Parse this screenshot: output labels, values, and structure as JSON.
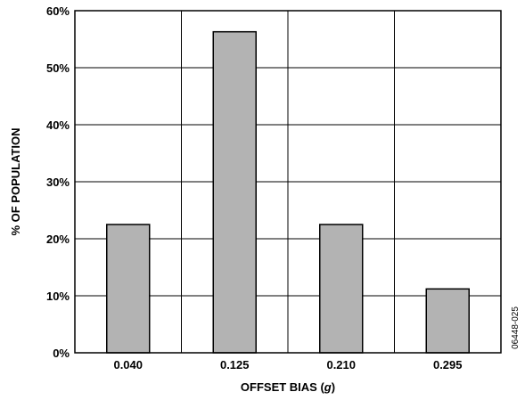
{
  "chart_data": {
    "type": "bar",
    "categories": [
      "0.040",
      "0.125",
      "0.210",
      "0.295"
    ],
    "values": [
      22.5,
      56.3,
      22.5,
      11.2
    ],
    "xlabel_main": "OFFSET BIAS (",
    "xlabel_unit": "g",
    "xlabel_close": ")",
    "ylabel": "% OF POPULATION",
    "ylim": [
      0,
      60
    ],
    "yticks": [
      "0%",
      "10%",
      "20%",
      "30%",
      "40%",
      "50%",
      "60%"
    ],
    "grid": true,
    "bar_color": "#b3b3b3",
    "bar_edge_color": "#000000"
  },
  "figure_id": "06448-025"
}
